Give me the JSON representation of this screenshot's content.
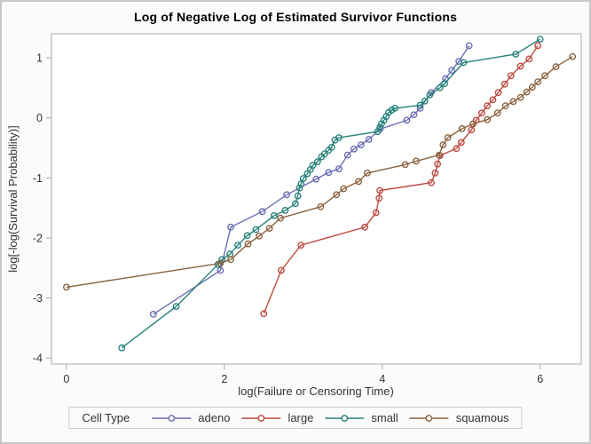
{
  "figure": {
    "title": "Log of Negative Log of Estimated Survivor Functions"
  },
  "colors": {
    "title_text": "#000000",
    "axis_text": "#333333",
    "frame": "#A8A8A8",
    "wall": "#FFFFFF",
    "figure_background": "#FBFBFB",
    "legend_border": "#CCCCCC"
  },
  "chart_data": {
    "type": "line",
    "title": "Log of Negative Log of Estimated Survivor Functions",
    "xlabel": "log(Failure or Censoring Time)",
    "ylabel": "log[-log(Survival Probability)]",
    "xlim": [
      -0.19,
      6.52
    ],
    "ylim": [
      -4.1,
      1.4
    ],
    "xticks": [
      0,
      2,
      4,
      6
    ],
    "yticks": [
      1,
      0,
      -1,
      -2,
      -3,
      -4
    ],
    "grid": false,
    "marker": "open-circle",
    "legend": {
      "title": "Cell Type",
      "position": "bottom"
    },
    "series": [
      {
        "name": "adeno",
        "color": "#6A6FB3",
        "points": [
          [
            1.1,
            -3.27
          ],
          [
            1.95,
            -2.54
          ],
          [
            2.08,
            -1.82
          ],
          [
            2.48,
            -1.56
          ],
          [
            2.79,
            -1.28
          ],
          [
            3.16,
            -1.02
          ],
          [
            3.32,
            -0.91
          ],
          [
            3.45,
            -0.85
          ],
          [
            3.56,
            -0.62
          ],
          [
            3.64,
            -0.52
          ],
          [
            3.73,
            -0.45
          ],
          [
            3.83,
            -0.36
          ],
          [
            3.97,
            -0.19
          ],
          [
            4.31,
            -0.04
          ],
          [
            4.4,
            0.05
          ],
          [
            4.48,
            0.16
          ],
          [
            4.62,
            0.42
          ],
          [
            4.8,
            0.65
          ],
          [
            4.88,
            0.79
          ],
          [
            4.97,
            0.94
          ],
          [
            5.1,
            1.2
          ]
        ]
      },
      {
        "name": "large",
        "color": "#BD4B42",
        "points": [
          [
            2.5,
            -3.26
          ],
          [
            2.72,
            -2.54
          ],
          [
            2.97,
            -2.12
          ],
          [
            3.78,
            -1.82
          ],
          [
            3.92,
            -1.58
          ],
          [
            3.96,
            -1.34
          ],
          [
            3.97,
            -1.21
          ],
          [
            4.62,
            -1.08
          ],
          [
            4.67,
            -0.92
          ],
          [
            4.7,
            -0.77
          ],
          [
            4.73,
            -0.63
          ],
          [
            4.94,
            -0.51
          ],
          [
            5.0,
            -0.41
          ],
          [
            5.13,
            -0.2
          ],
          [
            5.19,
            -0.04
          ],
          [
            5.26,
            0.08
          ],
          [
            5.33,
            0.2
          ],
          [
            5.4,
            0.3
          ],
          [
            5.47,
            0.42
          ],
          [
            5.55,
            0.56
          ],
          [
            5.63,
            0.7
          ],
          [
            5.75,
            0.86
          ],
          [
            5.86,
            0.98
          ],
          [
            5.97,
            1.2
          ]
        ]
      },
      {
        "name": "small",
        "color": "#27837B",
        "points": [
          [
            0.7,
            -3.83
          ],
          [
            1.39,
            -3.14
          ],
          [
            1.92,
            -2.44
          ],
          [
            1.97,
            -2.36
          ],
          [
            2.07,
            -2.27
          ],
          [
            2.17,
            -2.12
          ],
          [
            2.29,
            -1.96
          ],
          [
            2.4,
            -1.86
          ],
          [
            2.63,
            -1.63
          ],
          [
            2.77,
            -1.54
          ],
          [
            2.9,
            -1.43
          ],
          [
            2.93,
            -1.3
          ],
          [
            2.95,
            -1.17
          ],
          [
            2.97,
            -1.1
          ],
          [
            3.0,
            -1.01
          ],
          [
            3.05,
            -0.93
          ],
          [
            3.09,
            -0.86
          ],
          [
            3.12,
            -0.79
          ],
          [
            3.18,
            -0.73
          ],
          [
            3.23,
            -0.65
          ],
          [
            3.27,
            -0.6
          ],
          [
            3.32,
            -0.54
          ],
          [
            3.36,
            -0.49
          ],
          [
            3.4,
            -0.37
          ],
          [
            3.45,
            -0.33
          ],
          [
            3.94,
            -0.23
          ],
          [
            3.97,
            -0.16
          ],
          [
            3.99,
            -0.1
          ],
          [
            4.02,
            -0.04
          ],
          [
            4.05,
            0.02
          ],
          [
            4.08,
            0.09
          ],
          [
            4.12,
            0.13
          ],
          [
            4.16,
            0.16
          ],
          [
            4.48,
            0.21
          ],
          [
            4.54,
            0.28
          ],
          [
            4.6,
            0.38
          ],
          [
            4.73,
            0.5
          ],
          [
            4.79,
            0.57
          ],
          [
            5.03,
            0.92
          ],
          [
            5.69,
            1.06
          ],
          [
            6.0,
            1.31
          ]
        ]
      },
      {
        "name": "squamous",
        "color": "#8A6340",
        "points": [
          [
            0.0,
            -2.82
          ],
          [
            1.95,
            -2.42
          ],
          [
            2.08,
            -2.36
          ],
          [
            2.3,
            -2.1
          ],
          [
            2.44,
            -1.97
          ],
          [
            2.57,
            -1.84
          ],
          [
            2.71,
            -1.67
          ],
          [
            3.22,
            -1.48
          ],
          [
            3.42,
            -1.28
          ],
          [
            3.51,
            -1.18
          ],
          [
            3.7,
            -1.06
          ],
          [
            3.81,
            -0.92
          ],
          [
            4.29,
            -0.78
          ],
          [
            4.43,
            -0.72
          ],
          [
            4.72,
            -0.62
          ],
          [
            4.77,
            -0.45
          ],
          [
            4.83,
            -0.33
          ],
          [
            5.01,
            -0.18
          ],
          [
            5.15,
            -0.1
          ],
          [
            5.33,
            -0.03
          ],
          [
            5.46,
            0.08
          ],
          [
            5.56,
            0.2
          ],
          [
            5.66,
            0.27
          ],
          [
            5.75,
            0.34
          ],
          [
            5.83,
            0.43
          ],
          [
            5.9,
            0.51
          ],
          [
            5.97,
            0.6
          ],
          [
            6.06,
            0.7
          ],
          [
            6.2,
            0.85
          ],
          [
            6.41,
            1.02
          ]
        ]
      }
    ]
  }
}
